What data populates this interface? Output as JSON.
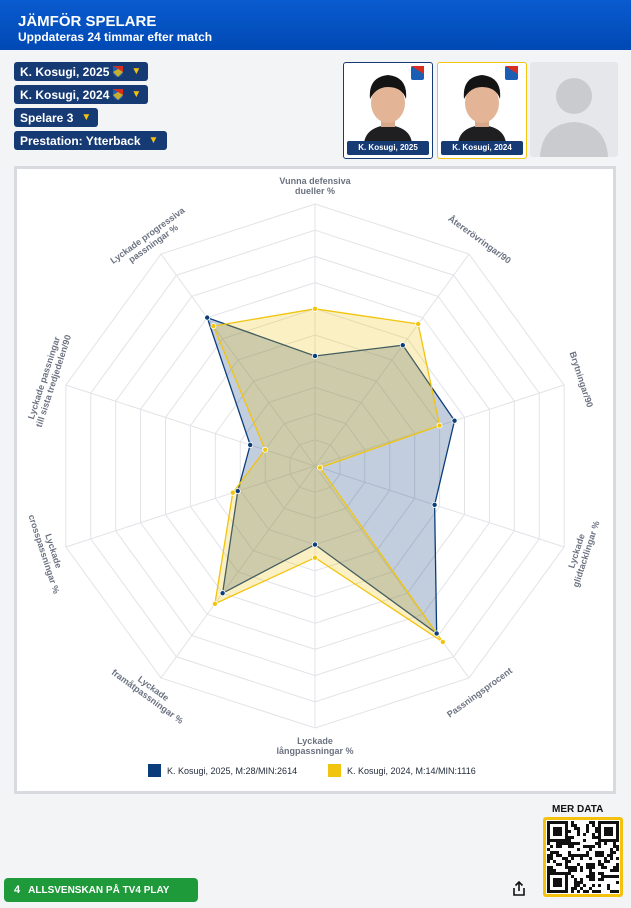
{
  "header": {
    "title": "JÄMFÖR SPELARE",
    "subtitle": "Uppdateras 24 timmar efter match"
  },
  "selectors": [
    {
      "label": "K. Kosugi, 2025",
      "club_icon": "djurgarden-crest-icon"
    },
    {
      "label": "K. Kosugi, 2024",
      "club_icon": "djurgarden-crest-icon"
    },
    {
      "label": "Spelare 3"
    },
    {
      "label": "Prestation: Ytterback"
    }
  ],
  "player_cards": [
    {
      "name": "K. Kosugi, 2025"
    },
    {
      "name": "K. Kosugi, 2024"
    },
    {
      "name": ""
    }
  ],
  "colors": {
    "series1": "#0b3d7a",
    "series2": "#f1c40f",
    "header": "#0049b4",
    "accent": "#f4c20d"
  },
  "chart_data": {
    "type": "radar",
    "axes": [
      [
        "Vunna defensiva",
        "dueller %"
      ],
      [
        "Återerövringar/90"
      ],
      [
        "Brytningar/90"
      ],
      [
        "Lyckade",
        "glidtacklingar %"
      ],
      [
        "Passningsprocent"
      ],
      [
        "Lyckade",
        "långpassningar %"
      ],
      [
        "Lyckade",
        "framåtpassningar %"
      ],
      [
        "Lyckade",
        "crosspassningar %"
      ],
      [
        "Lyckade passningar",
        "till sista tredjedelen/90"
      ],
      [
        "Lyckade progressiva",
        "passningar %"
      ]
    ],
    "range": [
      0,
      10
    ],
    "grid": true,
    "legend": "bottom",
    "series": [
      {
        "name": "K. Kosugi, 2025, M:28/MIN:2614",
        "color": "#0b3d7a",
        "values": [
          4.2,
          5.7,
          5.6,
          4.8,
          7.9,
          3.0,
          6.0,
          3.1,
          2.6,
          7.0
        ]
      },
      {
        "name": "K. Kosugi, 2024, M:14/MIN:1116",
        "color": "#f1c40f",
        "values": [
          6.0,
          6.7,
          5.0,
          0.2,
          8.3,
          3.5,
          6.5,
          3.3,
          2.0,
          6.6
        ]
      }
    ]
  },
  "footer": {
    "page_number": "4",
    "promo": "ALLSVENSKAN PÅ TV4 PLAY",
    "mer_data": "MER DATA",
    "share_icon": "share-icon",
    "qr_icon": "qr-code-icon"
  }
}
